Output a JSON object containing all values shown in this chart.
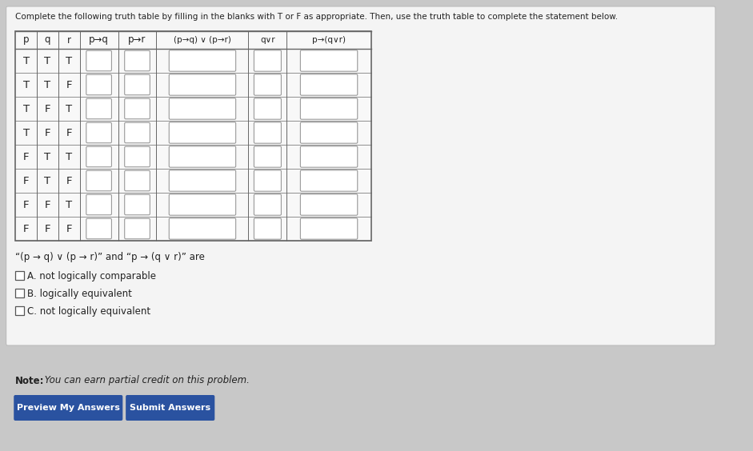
{
  "bg_outer": "#c8c8c8",
  "bg_panel": "#f0f0f0",
  "bg_below": "#d0d0d0",
  "title_text": "Complete the following truth table by filling in the blanks with T or F as appropriate. Then, use the truth table to complete the statement below.",
  "rows": [
    [
      "T",
      "T",
      "T"
    ],
    [
      "T",
      "T",
      "F"
    ],
    [
      "T",
      "F",
      "T"
    ],
    [
      "T",
      "F",
      "F"
    ],
    [
      "F",
      "T",
      "T"
    ],
    [
      "F",
      "T",
      "F"
    ],
    [
      "F",
      "F",
      "T"
    ],
    [
      "F",
      "F",
      "F"
    ]
  ],
  "col_headers": [
    "p",
    "q",
    "r",
    "p→q",
    "p→r",
    "(p→q) ∨ (p→r)",
    "q∨r",
    "p→(q∨r)"
  ],
  "formula_text": "“(p → q) ∨ (p → r)” and “p → (q ∨ r)” are",
  "option_A": "A. not logically comparable",
  "option_B": "B. logically equivalent",
  "option_C": "C. not logically equivalent",
  "note_bold": "Note:",
  "note_italic": " You can earn partial credit on this problem.",
  "btn1_text": "Preview My Answers",
  "btn2_text": "Submit Answers",
  "btn_color": "#2a52a0",
  "btn_text_color": "#ffffff",
  "table_text_color": "#222222",
  "cell_fill": "#ffffff",
  "cell_border": "#999999",
  "table_border": "#666666",
  "panel_border": "#bbbbbb"
}
